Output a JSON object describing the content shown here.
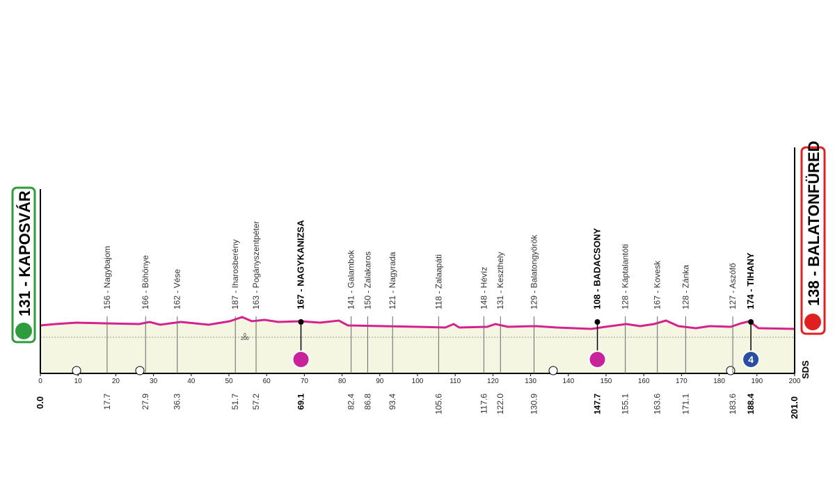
{
  "start": {
    "label": "131 - KAPOSVÁR",
    "km": "0.0"
  },
  "finish": {
    "label": "138 - BALATONFÜRED",
    "km": "201.0"
  },
  "altitude_labels": [
    "200",
    "0"
  ],
  "logo": "SDS",
  "km_ticks": [
    0,
    10,
    20,
    30,
    40,
    50,
    60,
    70,
    80,
    90,
    100,
    110,
    120,
    130,
    140,
    150,
    160,
    170,
    180,
    190,
    200
  ],
  "waypoints": [
    {
      "name": "156 - Nagybajom",
      "km": "17.7"
    },
    {
      "name": "166 - Böhönye",
      "km": "27.9"
    },
    {
      "name": "162 - Vése",
      "km": "36.3"
    },
    {
      "name": "187 - Iharosberény",
      "km": "51.7"
    },
    {
      "name": "163 - Pogányszentpéter",
      "km": "57.2"
    },
    {
      "name": "167 - NAGYKANIZSA",
      "km": "69.1",
      "bold": true,
      "marker": "sprint"
    },
    {
      "name": "141 - Galambok",
      "km": "82.4"
    },
    {
      "name": "150 - Zalakaros",
      "km": "86.8"
    },
    {
      "name": "121 - Nagyrada",
      "km": "93.4"
    },
    {
      "name": "118 - Zalaapáti",
      "km": "105.6"
    },
    {
      "name": "148 - Hévíz",
      "km": "117.6"
    },
    {
      "name": "131 - Keszthely",
      "km": "122.0"
    },
    {
      "name": "129 - Balatongyörök",
      "km": "130.9"
    },
    {
      "name": "108 - BADACSONY",
      "km": "147.7",
      "bold": true,
      "marker": "sprint"
    },
    {
      "name": "128 - Káptalantóti",
      "km": "155.1"
    },
    {
      "name": "167 - Kovesk",
      "km": "163.6"
    },
    {
      "name": "128 - Zánka",
      "km": "171.1"
    },
    {
      "name": "127 - Aszófő",
      "km": "183.6"
    },
    {
      "name": "174 - TIHANY",
      "km": "188.4",
      "bold": true,
      "marker": "kom",
      "kom_category": "4"
    }
  ]
}
